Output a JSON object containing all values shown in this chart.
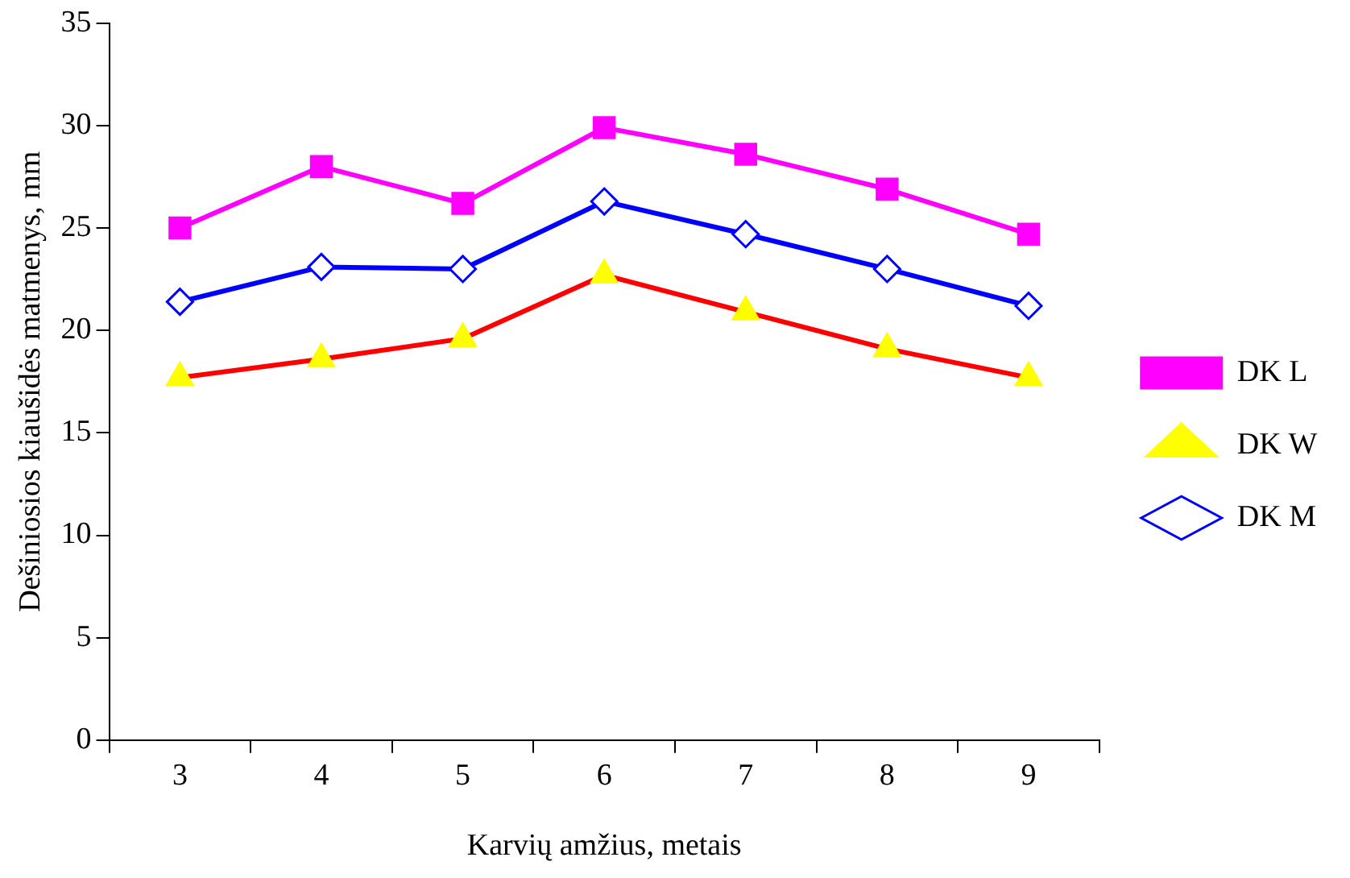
{
  "chart_data": {
    "type": "line",
    "xlabel": "Karvių amžius, metais",
    "ylabel": "Dešiniosios kiaušidės matmenys, mm",
    "categories": [
      "3",
      "4",
      "5",
      "6",
      "7",
      "8",
      "9"
    ],
    "ylim": [
      0,
      35
    ],
    "yticks": [
      0,
      5,
      10,
      15,
      20,
      25,
      30,
      35
    ],
    "grid": false,
    "legend": "right",
    "line_style": "solid",
    "series": [
      {
        "name": "DK L",
        "color": "#ff00ff",
        "marker": "square",
        "values": [
          25.0,
          28.0,
          26.2,
          29.9,
          28.6,
          26.9,
          24.7
        ]
      },
      {
        "name": "DK W",
        "color": "#ff0000",
        "marker": "triangle",
        "values": [
          17.7,
          18.6,
          19.6,
          22.7,
          20.9,
          19.1,
          17.7
        ]
      },
      {
        "name": "DK M",
        "color": "#0000ff",
        "marker": "diamond",
        "values": [
          21.4,
          23.1,
          23.0,
          26.3,
          24.7,
          23.0,
          21.2
        ]
      }
    ]
  }
}
